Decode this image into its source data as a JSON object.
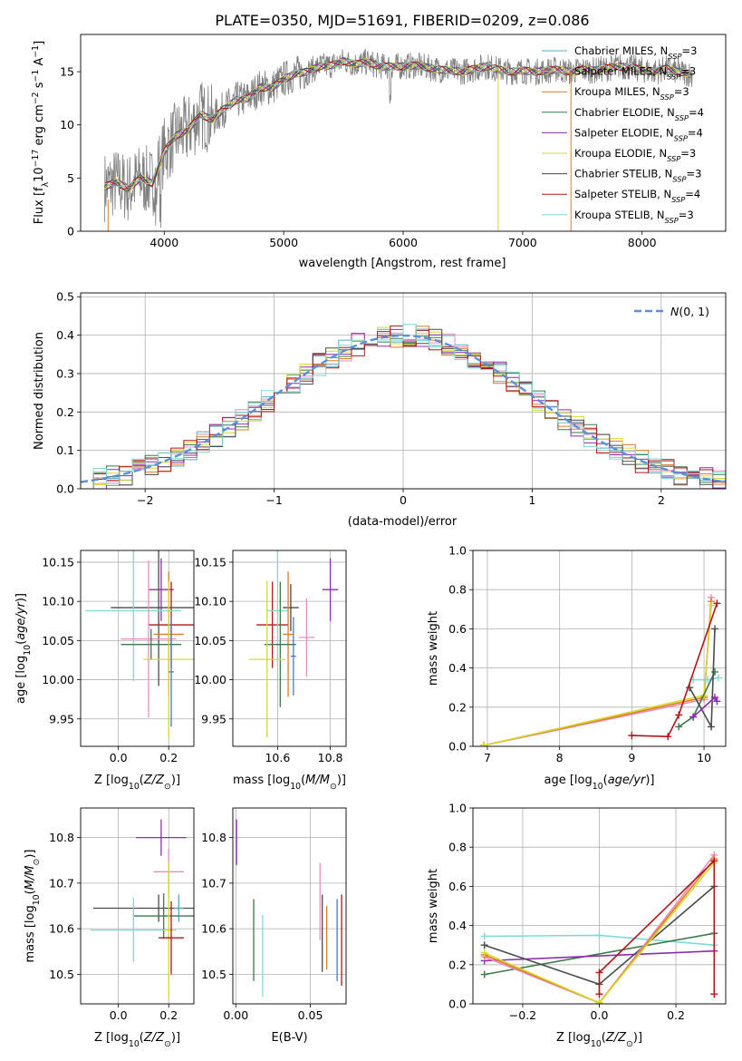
{
  "figure_title": "PLATE=0350, MJD=51691, FIBERID=0209, z=0.086",
  "colors": {
    "chabrier_miles": "#5aa9bd",
    "salpeter_miles": "#e88cc1",
    "kroupa_miles": "#e07b22",
    "chabrier_elodie": "#3d7a4a",
    "salpeter_elodie": "#8e2bb3",
    "kroupa_elodie": "#d7d92b",
    "chabrier_stelib": "#4a4a4a",
    "salpeter_stelib": "#b2151a",
    "kroupa_stelib": "#7fd8d8",
    "data": "#7f7f7f",
    "normal_curve": "#5b8fdc",
    "blue_errbar": "#4b74d1"
  },
  "chart_data": [
    {
      "id": "spectrum",
      "type": "line",
      "title": "PLATE=0350, MJD=51691, FIBERID=0209, z=0.086",
      "xlabel": "wavelength [Angstrom, rest frame]",
      "ylabel": "Flux [f_λ 10^-17 erg cm^-2 s^-1 A^-1]",
      "xlim": [
        3300,
        8700
      ],
      "ylim": [
        0,
        18.5
      ],
      "xticks": [
        4000,
        5000,
        6000,
        7000,
        8000
      ],
      "yticks": [
        0,
        5,
        10,
        15
      ],
      "grid": false,
      "legend_position": "upper-right",
      "continuum": {
        "x": [
          3500,
          3600,
          3700,
          3800,
          3900,
          4000,
          4100,
          4200,
          4300,
          4400,
          4500,
          4600,
          4700,
          4800,
          4900,
          5000,
          5100,
          5200,
          5300,
          5400,
          5500,
          5600,
          5700,
          5800,
          5900,
          6000,
          6100,
          6200,
          6300,
          6400,
          6500,
          6600,
          6700,
          6800,
          6900,
          7000,
          7100,
          7200,
          7300,
          7400,
          7500,
          7600,
          7700,
          7800,
          7900,
          8000,
          8100,
          8200,
          8300,
          8400
        ],
        "y": [
          4.2,
          4.6,
          4.0,
          5.0,
          4.5,
          7.5,
          9.0,
          9.5,
          11.0,
          10.5,
          11.5,
          12.3,
          12.5,
          13.5,
          13.5,
          14.3,
          14.8,
          15.0,
          15.5,
          15.6,
          16.0,
          15.7,
          15.9,
          15.5,
          15.5,
          15.5,
          15.6,
          15.4,
          15.2,
          15.1,
          15.0,
          15.3,
          15.5,
          15.2,
          15.0,
          15.1,
          15.0,
          15.1,
          15.2,
          15.0,
          15.2,
          15.1,
          15.3,
          15.5,
          15.4,
          15.2,
          15.0,
          15.3,
          15.0,
          14.8
        ]
      },
      "series": [
        {
          "name": "Chabrier MILES, N_SSP=3",
          "color": "#5aa9bd"
        },
        {
          "name": "Salpeter MILES, N_SSP=3",
          "color": "#e88cc1"
        },
        {
          "name": "Kroupa MILES, N_SSP=3",
          "color": "#e07b22"
        },
        {
          "name": "Chabrier ELODIE, N_SSP=4",
          "color": "#3d7a4a"
        },
        {
          "name": "Salpeter ELODIE, N_SSP=4",
          "color": "#8e2bb3"
        },
        {
          "name": "Kroupa ELODIE, N_SSP=3",
          "color": "#d7d92b"
        },
        {
          "name": "Chabrier STELIB, N_SSP=3",
          "color": "#4a4a4a"
        },
        {
          "name": "Salpeter STELIB, N_SSP=4",
          "color": "#b2151a"
        },
        {
          "name": "Kroupa STELIB, N_SSP=3",
          "color": "#7fd8d8"
        }
      ]
    },
    {
      "id": "residual_hist",
      "type": "line",
      "xlabel": "(data-model)/error",
      "ylabel": "Normed distribution",
      "xlim": [
        -2.5,
        2.5
      ],
      "ylim": [
        0,
        0.51
      ],
      "xticks": [
        -2,
        -1,
        0,
        1,
        2
      ],
      "yticks": [
        0.0,
        0.1,
        0.2,
        0.3,
        0.4,
        0.5
      ],
      "grid": true,
      "legend_position": "upper-right",
      "curve_label": "N(0,1)",
      "bin_width": 0.1,
      "bin_start": -2.5
    },
    {
      "id": "age_vs_Z",
      "type": "scatter",
      "xlabel": "Z [log10(Z/Z⊙)]",
      "ylabel": "age [log10(age/yr)]",
      "xlim": [
        -0.15,
        0.3
      ],
      "ylim": [
        9.915,
        10.165
      ],
      "xticks": [
        0.0,
        0.2
      ],
      "yticks": [
        9.95,
        10.0,
        10.05,
        10.1,
        10.15
      ],
      "grid": true,
      "points": [
        {
          "x": 0.17,
          "y": 10.115,
          "xerr": 0.05,
          "yerr": 0.04,
          "color": "#8e2bb3"
        },
        {
          "x": 0.21,
          "y": 10.07,
          "xerr": 0.09,
          "yerr": 0.055,
          "color": "#b2151a"
        },
        {
          "x": 0.16,
          "y": 10.092,
          "xerr": 0.19,
          "yerr": 0.1,
          "color": "#4a4a4a"
        },
        {
          "x": 0.06,
          "y": 10.088,
          "xerr": 0.19,
          "yerr": 0.09,
          "color": "#7fd8d8"
        },
        {
          "x": 0.2,
          "y": 10.058,
          "xerr": 0.06,
          "yerr": 0.08,
          "color": "#e07b22"
        },
        {
          "x": 0.12,
          "y": 10.052,
          "xerr": 0.11,
          "yerr": 0.1,
          "color": "#e88cc1"
        },
        {
          "x": 0.13,
          "y": 10.045,
          "xerr": 0.12,
          "yerr": 0.02,
          "color": "#3d7a4a"
        },
        {
          "x": 0.2,
          "y": 10.026,
          "xerr": 0.1,
          "yerr": 0.1,
          "color": "#d7d92b"
        },
        {
          "x": 0.21,
          "y": 10.01,
          "xerr": 0.01,
          "yerr": 0.07,
          "color": "#4b74d1"
        }
      ]
    },
    {
      "id": "age_vs_mass",
      "type": "scatter",
      "xlabel": "mass [log10(M/M⊙)]",
      "ylabel": "",
      "xlim": [
        10.43,
        10.86
      ],
      "ylim": [
        9.915,
        10.165
      ],
      "xticks": [
        10.6,
        10.8
      ],
      "yticks": [
        9.95,
        10.0,
        10.05,
        10.1,
        10.15
      ],
      "grid": true,
      "points": [
        {
          "x": 10.8,
          "y": 10.115,
          "xerr": 0.03,
          "yerr": 0.04,
          "color": "#8e2bb3"
        },
        {
          "x": 10.58,
          "y": 10.07,
          "xerr": 0.06,
          "yerr": 0.055,
          "color": "#b2151a"
        },
        {
          "x": 10.65,
          "y": 10.092,
          "xerr": 0.03,
          "yerr": 0.03,
          "color": "#4a4a4a"
        },
        {
          "x": 10.6,
          "y": 10.088,
          "xerr": 0.04,
          "yerr": 0.09,
          "color": "#7fd8d8"
        },
        {
          "x": 10.64,
          "y": 10.058,
          "xerr": 0.02,
          "yerr": 0.08,
          "color": "#e07b22"
        },
        {
          "x": 10.71,
          "y": 10.054,
          "xerr": 0.03,
          "yerr": 0.05,
          "color": "#e88cc1"
        },
        {
          "x": 10.61,
          "y": 10.045,
          "xerr": 0.06,
          "yerr": 0.08,
          "color": "#3d7a4a"
        },
        {
          "x": 10.56,
          "y": 10.026,
          "xerr": 0.07,
          "yerr": 0.1,
          "color": "#d7d92b"
        },
        {
          "x": 10.66,
          "y": 10.03,
          "xerr": 0.01,
          "yerr": 0.05,
          "color": "#4b74d1"
        }
      ]
    },
    {
      "id": "weight_vs_age",
      "type": "line",
      "xlabel": "age [log10(age/yr)]",
      "ylabel": "mass weight",
      "xlim": [
        6.8,
        10.3
      ],
      "ylim": [
        0.0,
        1.0
      ],
      "xticks": [
        7,
        8,
        9,
        10
      ],
      "yticks": [
        0.0,
        0.2,
        0.4,
        0.6,
        0.8,
        1.0
      ],
      "grid": true,
      "series": [
        {
          "color": "#e88cc1",
          "x": [
            6.95,
            10.0,
            10.1
          ],
          "y": [
            0.005,
            0.24,
            0.76
          ]
        },
        {
          "color": "#e07b22",
          "x": [
            6.95,
            10.0,
            10.1
          ],
          "y": [
            0.005,
            0.25,
            0.74
          ]
        },
        {
          "color": "#d7d92b",
          "x": [
            6.95,
            10.0,
            10.1
          ],
          "y": [
            0.005,
            0.26,
            0.72
          ]
        },
        {
          "color": "#7fd8d8",
          "x": [
            9.85,
            10.05,
            10.2
          ],
          "y": [
            0.34,
            0.34,
            0.35
          ]
        },
        {
          "color": "#3d7a4a",
          "x": [
            9.65,
            9.85,
            10.15
          ],
          "y": [
            0.1,
            0.15,
            0.38
          ]
        },
        {
          "color": "#4a4a4a",
          "x": [
            9.8,
            10.1,
            10.15
          ],
          "y": [
            0.3,
            0.1,
            0.6
          ]
        },
        {
          "color": "#8e2bb3",
          "x": [
            9.85,
            10.15,
            10.18
          ],
          "y": [
            0.15,
            0.25,
            0.23
          ]
        },
        {
          "color": "#b2151a",
          "x": [
            9.0,
            9.5,
            9.65,
            10.18
          ],
          "y": [
            0.055,
            0.05,
            0.16,
            0.73
          ]
        }
      ]
    },
    {
      "id": "mass_vs_Z",
      "type": "scatter",
      "xlabel": "Z [log10(Z/Z⊙)]",
      "ylabel": "mass [log10(M/M⊙)]",
      "xlim": [
        -0.15,
        0.3
      ],
      "ylim": [
        10.435,
        10.865
      ],
      "xticks": [
        0.0,
        0.2
      ],
      "yticks": [
        10.5,
        10.6,
        10.7,
        10.8
      ],
      "grid": true,
      "points": [
        {
          "x": 0.17,
          "y": 10.8,
          "xerr": 0.1,
          "yerr": 0.04,
          "color": "#8e2bb3"
        },
        {
          "x": 0.2,
          "y": 10.725,
          "xerr": 0.06,
          "yerr": 0.05,
          "color": "#e88cc1"
        },
        {
          "x": 0.16,
          "y": 10.645,
          "xerr": 0.26,
          "yerr": 0.03,
          "color": "#4a4a4a"
        },
        {
          "x": 0.24,
          "y": 10.645,
          "xerr": 0.02,
          "yerr": 0.03,
          "color": "#5aa9bd"
        },
        {
          "x": 0.18,
          "y": 10.628,
          "xerr": 0.12,
          "yerr": 0.05,
          "color": "#3d7a4a"
        },
        {
          "x": 0.06,
          "y": 10.597,
          "xerr": 0.17,
          "yerr": 0.07,
          "color": "#7fd8d8"
        },
        {
          "x": 0.2,
          "y": 10.597,
          "xerr": 0.02,
          "yerr": 0.15,
          "color": "#d7d92b"
        },
        {
          "x": 0.21,
          "y": 10.58,
          "xerr": 0.05,
          "yerr": 0.08,
          "color": "#b2151a"
        }
      ]
    },
    {
      "id": "mass_vs_ebv",
      "type": "scatter",
      "xlabel": "E(B-V)",
      "ylabel": "",
      "xlim": [
        -0.002,
        0.074
      ],
      "ylim": [
        10.435,
        10.865
      ],
      "xticks": [
        0.0,
        0.05
      ],
      "yticks": [
        10.5,
        10.6,
        10.7,
        10.8
      ],
      "grid": true,
      "points": [
        {
          "x": 0.0005,
          "y": 10.79,
          "yerr": 0.05,
          "color": "#8e2bb3"
        },
        {
          "x": 0.012,
          "y": 10.575,
          "yerr": 0.09,
          "color": "#3d7a4a"
        },
        {
          "x": 0.018,
          "y": 10.54,
          "yerr": 0.09,
          "color": "#7fd8d8"
        },
        {
          "x": 0.0565,
          "y": 10.66,
          "yerr": 0.085,
          "color": "#e88cc1"
        },
        {
          "x": 0.058,
          "y": 10.59,
          "yerr": 0.085,
          "color": "#4a4a4a"
        },
        {
          "x": 0.061,
          "y": 10.58,
          "yerr": 0.07,
          "color": "#e07b22"
        },
        {
          "x": 0.068,
          "y": 10.575,
          "yerr": 0.09,
          "color": "#4b74d1"
        },
        {
          "x": 0.071,
          "y": 10.575,
          "yerr": 0.1,
          "color": "#b2151a"
        }
      ]
    },
    {
      "id": "weight_vs_Z",
      "type": "line",
      "xlabel": "Z [log10(Z/Z⊙)]",
      "ylabel": "mass weight",
      "xlim": [
        -0.33,
        0.33
      ],
      "ylim": [
        0.0,
        1.0
      ],
      "xticks": [
        -0.2,
        0.0,
        0.2
      ],
      "yticks": [
        0.0,
        0.2,
        0.4,
        0.6,
        0.8,
        1.0
      ],
      "grid": true,
      "series": [
        {
          "color": "#7fd8d8",
          "x": [
            -0.3,
            0.0,
            0.3
          ],
          "y": [
            0.345,
            0.35,
            0.3
          ]
        },
        {
          "color": "#3d7a4a",
          "x": [
            -0.3,
            0.3
          ],
          "y": [
            0.15,
            0.36
          ]
        },
        {
          "color": "#8e2bb3",
          "x": [
            -0.3,
            0.3
          ],
          "y": [
            0.22,
            0.27
          ]
        },
        {
          "color": "#4a4a4a",
          "x": [
            -0.3,
            0.0,
            0.3
          ],
          "y": [
            0.3,
            0.1,
            0.6
          ]
        },
        {
          "color": "#e88cc1",
          "x": [
            -0.3,
            0.0,
            0.3
          ],
          "y": [
            0.24,
            0.005,
            0.76
          ]
        },
        {
          "color": "#e07b22",
          "x": [
            -0.3,
            0.0,
            0.3
          ],
          "y": [
            0.25,
            0.005,
            0.74
          ]
        },
        {
          "color": "#d7d92b",
          "x": [
            -0.3,
            0.0,
            0.3
          ],
          "y": [
            0.26,
            0.005,
            0.72
          ]
        },
        {
          "color": "#b2151a",
          "x": [
            0.0,
            0.0,
            0.3,
            0.3
          ],
          "y": [
            0.05,
            0.16,
            0.73,
            0.05
          ]
        }
      ]
    }
  ]
}
